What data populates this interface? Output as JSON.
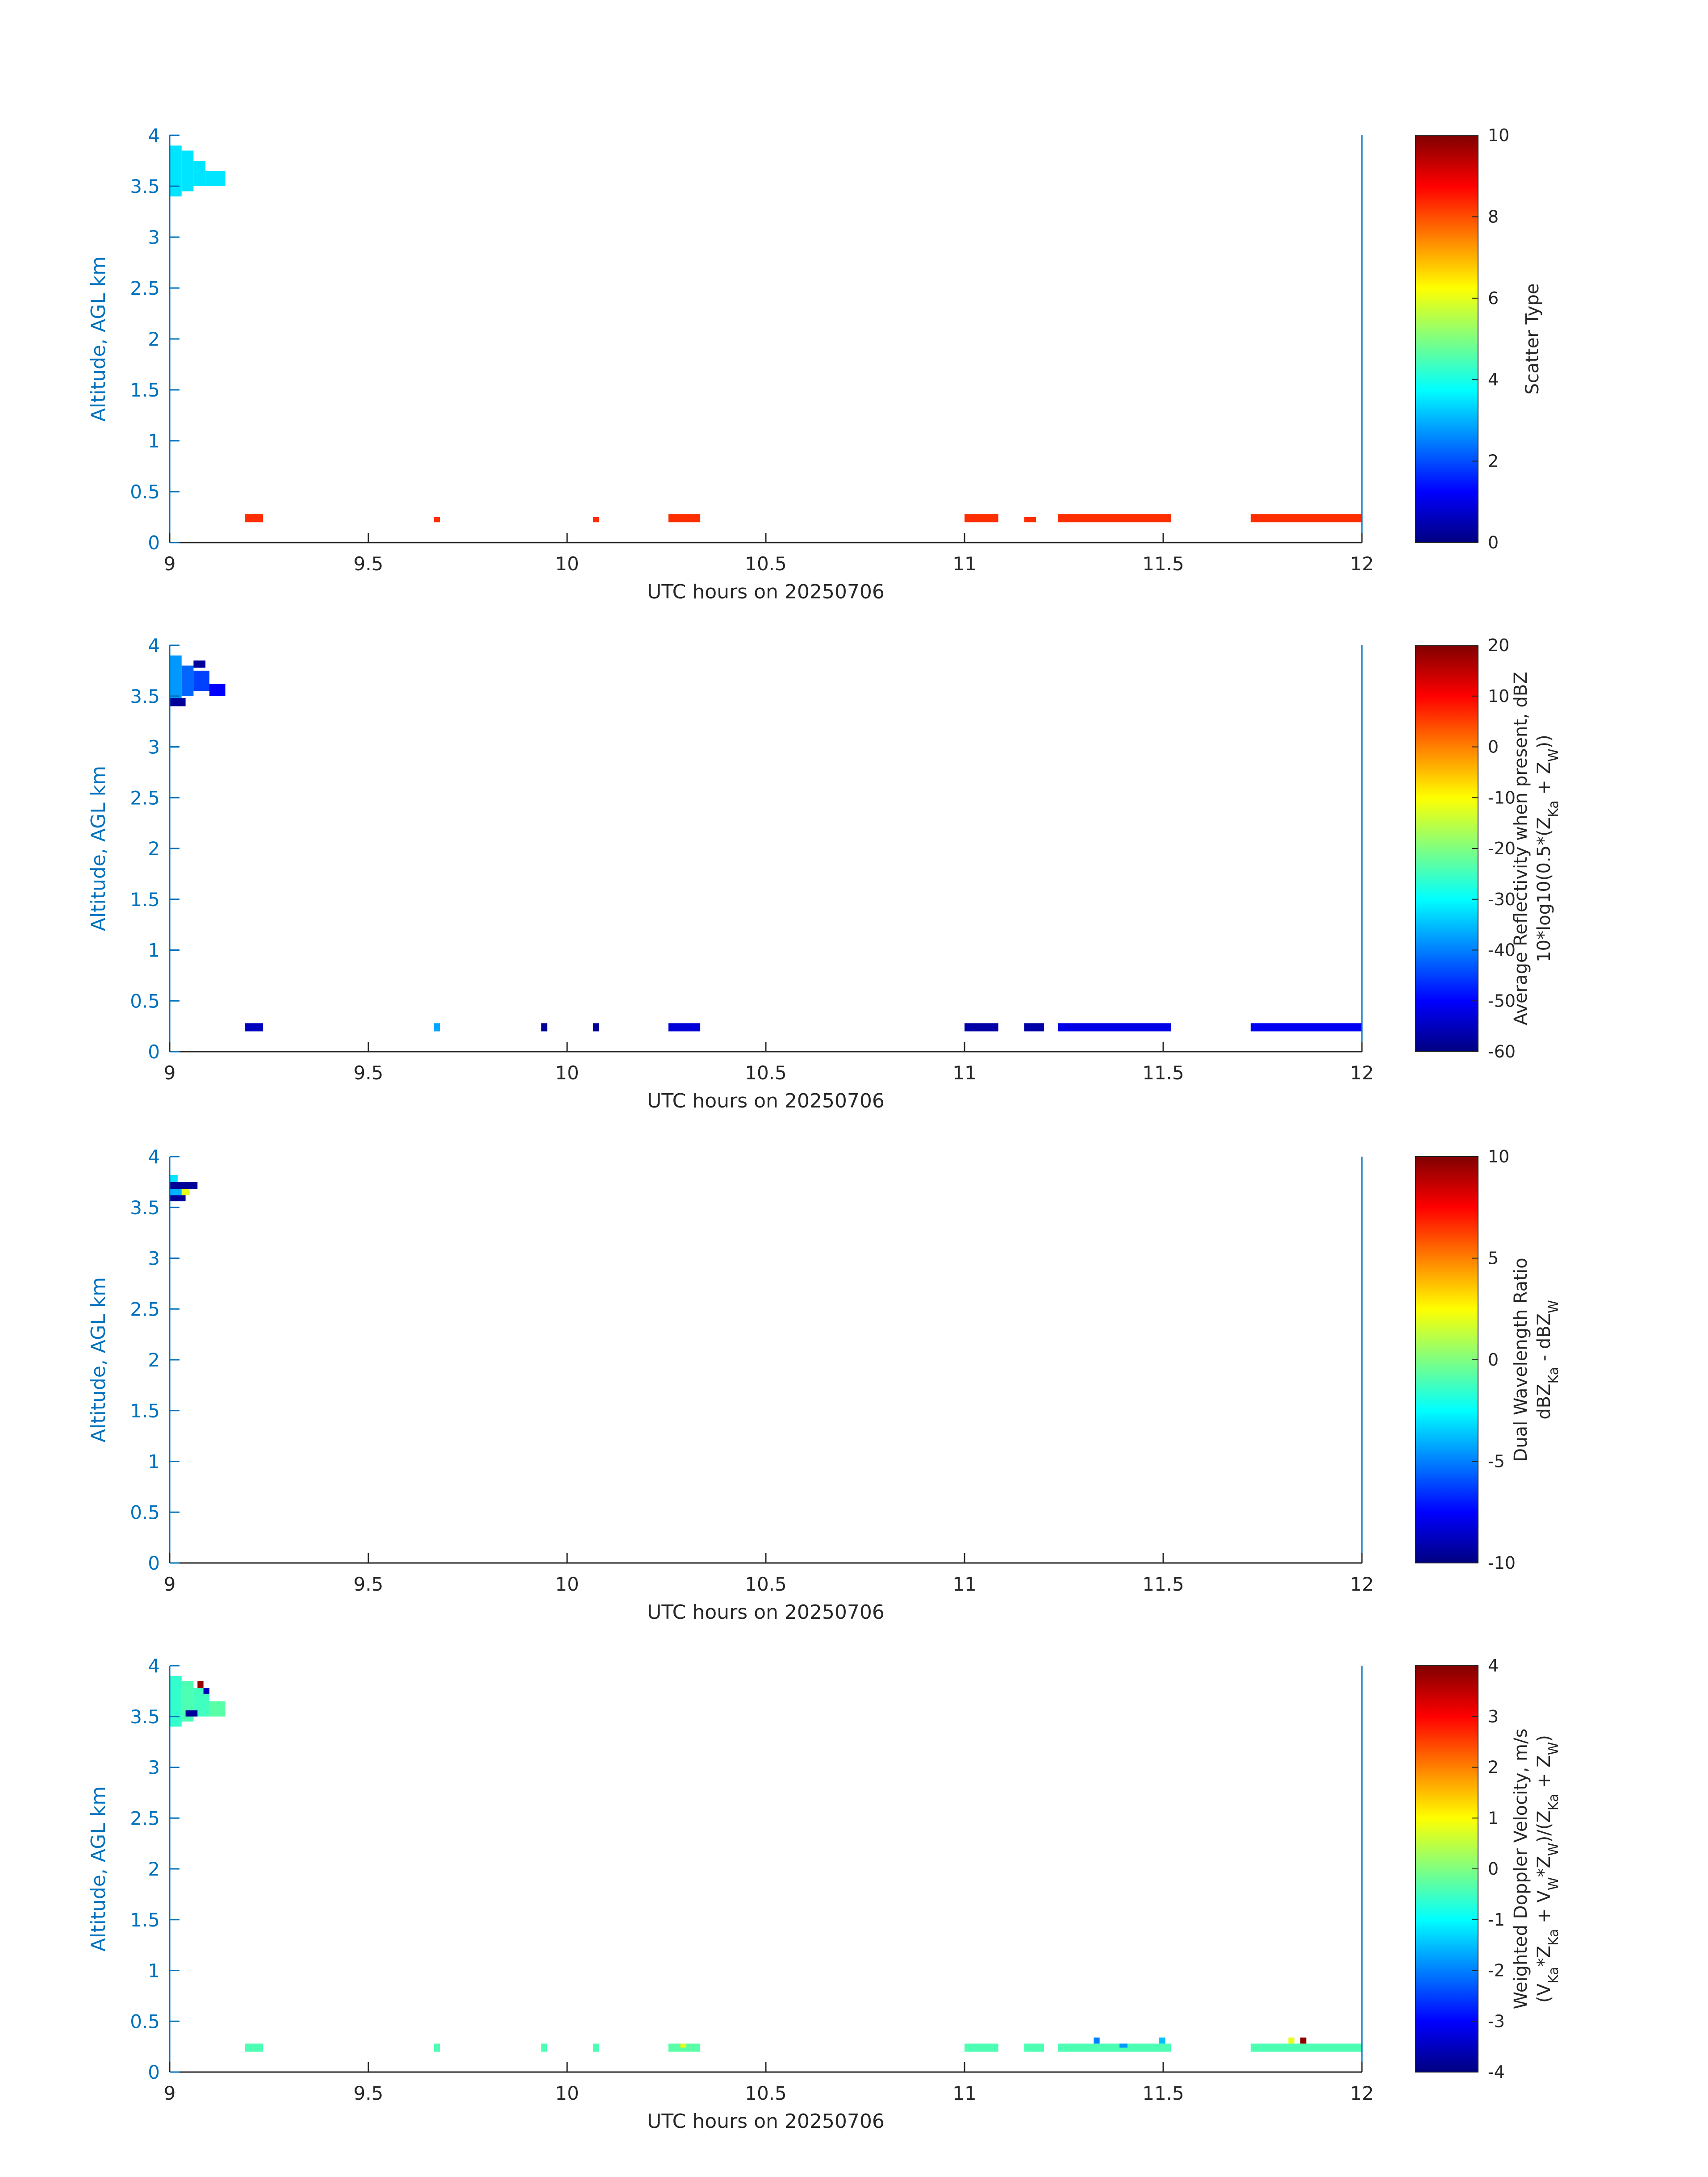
{
  "chart_data": [
    {
      "type": "heatmap",
      "panel": "scatter-type",
      "xlabel": "UTC hours on 20250706",
      "ylabel": "Altitude, AGL km",
      "xlim": [
        9,
        12
      ],
      "ylim": [
        0,
        4
      ],
      "xticks": [
        "9",
        "9.5",
        "10",
        "10.5",
        "11",
        "11.5",
        "12"
      ],
      "yticks": [
        "0",
        "0.5",
        "1",
        "1.5",
        "2",
        "2.5",
        "3",
        "3.5",
        "4"
      ],
      "colorbar": {
        "label": [
          "Scatter Type"
        ],
        "min": 0,
        "max": 10,
        "ticks": [
          "0",
          "2",
          "4",
          "6",
          "8",
          "10"
        ]
      },
      "cells": [
        {
          "x0": 9.0,
          "x1": 9.03,
          "y0": 3.4,
          "y1": 3.9,
          "v": 3.5
        },
        {
          "x0": 9.03,
          "x1": 9.06,
          "y0": 3.45,
          "y1": 3.85,
          "v": 3.5
        },
        {
          "x0": 9.06,
          "x1": 9.09,
          "y0": 3.5,
          "y1": 3.75,
          "v": 3.5
        },
        {
          "x0": 9.09,
          "x1": 9.14,
          "y0": 3.5,
          "y1": 3.65,
          "v": 3.5
        },
        {
          "x0": 9.19,
          "x1": 9.235,
          "y0": 0.2,
          "y1": 0.28,
          "v": 8.3
        },
        {
          "x0": 9.665,
          "x1": 9.68,
          "y0": 0.2,
          "y1": 0.25,
          "v": 8.3
        },
        {
          "x0": 10.065,
          "x1": 10.08,
          "y0": 0.2,
          "y1": 0.25,
          "v": 8.3
        },
        {
          "x0": 10.255,
          "x1": 10.335,
          "y0": 0.2,
          "y1": 0.28,
          "v": 8.3
        },
        {
          "x0": 11.0,
          "x1": 11.085,
          "y0": 0.2,
          "y1": 0.28,
          "v": 8.3
        },
        {
          "x0": 11.15,
          "x1": 11.18,
          "y0": 0.2,
          "y1": 0.25,
          "v": 8.3
        },
        {
          "x0": 11.235,
          "x1": 11.52,
          "y0": 0.2,
          "y1": 0.28,
          "v": 8.3
        },
        {
          "x0": 11.72,
          "x1": 12.0,
          "y0": 0.2,
          "y1": 0.28,
          "v": 8.3
        }
      ]
    },
    {
      "type": "heatmap",
      "panel": "reflectivity",
      "xlabel": "UTC hours on 20250706",
      "ylabel": "Altitude, AGL km",
      "xlim": [
        9,
        12
      ],
      "ylim": [
        0,
        4
      ],
      "xticks": [
        "9",
        "9.5",
        "10",
        "10.5",
        "11",
        "11.5",
        "12"
      ],
      "yticks": [
        "0",
        "0.5",
        "1",
        "1.5",
        "2",
        "2.5",
        "3",
        "3.5",
        "4"
      ],
      "colorbar": {
        "label": [
          "Average Reflectivity when present, dBZ",
          "10*log10(0.5*(Z_Ka + Z_W))"
        ],
        "min": -60,
        "max": 20,
        "ticks": [
          "-60",
          "-50",
          "-40",
          "-30",
          "-20",
          "-10",
          "0",
          "10",
          "20"
        ]
      },
      "cells": [
        {
          "x0": 9.0,
          "x1": 9.03,
          "y0": 3.4,
          "y1": 3.9,
          "v": -38
        },
        {
          "x0": 9.03,
          "x1": 9.06,
          "y0": 3.5,
          "y1": 3.8,
          "v": -42
        },
        {
          "x0": 9.06,
          "x1": 9.1,
          "y0": 3.55,
          "y1": 3.75,
          "v": -45
        },
        {
          "x0": 9.1,
          "x1": 9.14,
          "y0": 3.5,
          "y1": 3.62,
          "v": -50
        },
        {
          "x0": 9.0,
          "x1": 9.04,
          "y0": 3.4,
          "y1": 3.48,
          "v": -58
        },
        {
          "x0": 9.06,
          "x1": 9.09,
          "y0": 3.78,
          "y1": 3.85,
          "v": -58
        },
        {
          "x0": 9.19,
          "x1": 9.235,
          "y0": 0.2,
          "y1": 0.28,
          "v": -55
        },
        {
          "x0": 9.665,
          "x1": 9.68,
          "y0": 0.2,
          "y1": 0.28,
          "v": -37
        },
        {
          "x0": 9.935,
          "x1": 9.95,
          "y0": 0.2,
          "y1": 0.28,
          "v": -58
        },
        {
          "x0": 10.065,
          "x1": 10.08,
          "y0": 0.2,
          "y1": 0.28,
          "v": -58
        },
        {
          "x0": 10.255,
          "x1": 10.335,
          "y0": 0.2,
          "y1": 0.28,
          "v": -53
        },
        {
          "x0": 11.0,
          "x1": 11.085,
          "y0": 0.2,
          "y1": 0.28,
          "v": -57
        },
        {
          "x0": 11.15,
          "x1": 11.2,
          "y0": 0.2,
          "y1": 0.28,
          "v": -57
        },
        {
          "x0": 11.235,
          "x1": 11.52,
          "y0": 0.2,
          "y1": 0.28,
          "v": -52
        },
        {
          "x0": 11.72,
          "x1": 12.0,
          "y0": 0.2,
          "y1": 0.28,
          "v": -51
        }
      ]
    },
    {
      "type": "heatmap",
      "panel": "dual-wavelength-ratio",
      "xlabel": "UTC hours on 20250706",
      "ylabel": "Altitude, AGL km",
      "xlim": [
        9,
        12
      ],
      "ylim": [
        0,
        4
      ],
      "xticks": [
        "9",
        "9.5",
        "10",
        "10.5",
        "11",
        "11.5",
        "12"
      ],
      "yticks": [
        "0",
        "0.5",
        "1",
        "1.5",
        "2",
        "2.5",
        "3",
        "3.5",
        "4"
      ],
      "colorbar": {
        "label": [
          "Dual Wavelength Ratio",
          "dBZ_Ka - dBZ_W"
        ],
        "min": -10,
        "max": 10,
        "ticks": [
          "-10",
          "-5",
          "0",
          "5",
          "10"
        ]
      },
      "cells": [
        {
          "x0": 9.0,
          "x1": 9.02,
          "y0": 3.75,
          "y1": 3.82,
          "v": -3
        },
        {
          "x0": 9.0,
          "x1": 9.07,
          "y0": 3.68,
          "y1": 3.75,
          "v": -9.5
        },
        {
          "x0": 9.0,
          "x1": 9.04,
          "y0": 3.62,
          "y1": 3.68,
          "v": -4
        },
        {
          "x0": 9.03,
          "x1": 9.05,
          "y0": 3.62,
          "y1": 3.68,
          "v": 2
        },
        {
          "x0": 9.0,
          "x1": 9.04,
          "y0": 3.56,
          "y1": 3.62,
          "v": -9.5
        }
      ]
    },
    {
      "type": "heatmap",
      "panel": "doppler-velocity",
      "xlabel": "UTC hours on 20250706",
      "ylabel": "Altitude, AGL km",
      "xlim": [
        9,
        12
      ],
      "ylim": [
        0,
        4
      ],
      "xticks": [
        "9",
        "9.5",
        "10",
        "10.5",
        "11",
        "11.5",
        "12"
      ],
      "yticks": [
        "0",
        "0.5",
        "1",
        "1.5",
        "2",
        "2.5",
        "3",
        "3.5",
        "4"
      ],
      "colorbar": {
        "label": [
          "Weighted Doppler Velocity, m/s",
          "(V_Ka*Z_Ka + V_W*Z_W)/(Z_Ka + Z_W)"
        ],
        "min": -4,
        "max": 4,
        "ticks": [
          "-4",
          "-3",
          "-2",
          "-1",
          "0",
          "1",
          "2",
          "3",
          "4"
        ]
      },
      "cells": [
        {
          "x0": 9.0,
          "x1": 9.03,
          "y0": 3.4,
          "y1": 3.9,
          "v": -0.6
        },
        {
          "x0": 9.03,
          "x1": 9.06,
          "y0": 3.45,
          "y1": 3.85,
          "v": -0.4
        },
        {
          "x0": 9.06,
          "x1": 9.1,
          "y0": 3.5,
          "y1": 3.78,
          "v": -0.5
        },
        {
          "x0": 9.1,
          "x1": 9.14,
          "y0": 3.5,
          "y1": 3.65,
          "v": -0.3
        },
        {
          "x0": 9.07,
          "x1": 9.085,
          "y0": 3.78,
          "y1": 3.85,
          "v": 3.8
        },
        {
          "x0": 9.085,
          "x1": 9.1,
          "y0": 3.72,
          "y1": 3.78,
          "v": -3.5
        },
        {
          "x0": 9.04,
          "x1": 9.07,
          "y0": 3.5,
          "y1": 3.56,
          "v": -3.8
        },
        {
          "x0": 9.19,
          "x1": 9.235,
          "y0": 0.2,
          "y1": 0.28,
          "v": -0.4
        },
        {
          "x0": 9.665,
          "x1": 9.68,
          "y0": 0.2,
          "y1": 0.28,
          "v": -0.4
        },
        {
          "x0": 9.935,
          "x1": 9.95,
          "y0": 0.2,
          "y1": 0.28,
          "v": -0.4
        },
        {
          "x0": 10.065,
          "x1": 10.08,
          "y0": 0.2,
          "y1": 0.28,
          "v": -0.4
        },
        {
          "x0": 10.255,
          "x1": 10.335,
          "y0": 0.2,
          "y1": 0.28,
          "v": -0.3
        },
        {
          "x0": 10.285,
          "x1": 10.3,
          "y0": 0.24,
          "y1": 0.28,
          "v": 0.8
        },
        {
          "x0": 11.0,
          "x1": 11.085,
          "y0": 0.2,
          "y1": 0.28,
          "v": -0.4
        },
        {
          "x0": 11.15,
          "x1": 11.2,
          "y0": 0.2,
          "y1": 0.28,
          "v": -0.4
        },
        {
          "x0": 11.235,
          "x1": 11.52,
          "y0": 0.2,
          "y1": 0.28,
          "v": -0.4
        },
        {
          "x0": 11.325,
          "x1": 11.34,
          "y0": 0.28,
          "y1": 0.34,
          "v": -2
        },
        {
          "x0": 11.39,
          "x1": 11.41,
          "y0": 0.24,
          "y1": 0.28,
          "v": -1.8
        },
        {
          "x0": 11.49,
          "x1": 11.505,
          "y0": 0.28,
          "y1": 0.34,
          "v": -1.5
        },
        {
          "x0": 11.72,
          "x1": 12.0,
          "y0": 0.2,
          "y1": 0.28,
          "v": -0.4
        },
        {
          "x0": 11.815,
          "x1": 11.83,
          "y0": 0.28,
          "y1": 0.34,
          "v": 0.8
        },
        {
          "x0": 11.845,
          "x1": 11.86,
          "y0": 0.28,
          "y1": 0.34,
          "v": 3.9
        }
      ]
    }
  ]
}
